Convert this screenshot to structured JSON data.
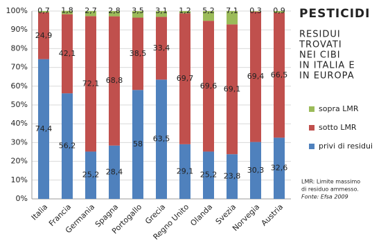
{
  "chart_data": {
    "type": "stacked_bar",
    "title": "PESTICIDI",
    "subtitle": [
      "RESIDUI",
      "TROVATI",
      "NEI CIBI",
      "IN ITALIA E",
      "IN EUROPA"
    ],
    "notes": [
      "LMR: Limite massimo",
      "di residuo ammesso.",
      "Fonte: Efsa 2009"
    ],
    "categories": [
      "Italia",
      "Francia",
      "Germania",
      "Spagna",
      "Portogallo",
      "Grecia",
      "Regno Unito",
      "Olanda",
      "Svezia",
      "Norvegia",
      "Austria"
    ],
    "series": [
      {
        "name": "privi di residui",
        "color": "#4f81bd",
        "values": [
          74.4,
          56.2,
          25.2,
          28.4,
          58,
          63.5,
          29.1,
          25.2,
          23.8,
          30.3,
          32.6
        ],
        "value_labels": [
          "74,4",
          "56,2",
          "25,2",
          "28,4",
          "58",
          "63,5",
          "29,1",
          "25,2",
          "23,8",
          "30,3",
          "32,6"
        ]
      },
      {
        "name": "sotto LMR",
        "color": "#c0504d",
        "values": [
          24.9,
          42.1,
          72.1,
          68.8,
          38.5,
          33.4,
          69.7,
          69.6,
          69.1,
          69.4,
          66.5
        ],
        "value_labels": [
          "24,9",
          "42,1",
          "72,1",
          "68,8",
          "38,5",
          "33,4",
          "69,7",
          "69,6",
          "69,1",
          "69,4",
          "66,5"
        ]
      },
      {
        "name": "sopra LMR",
        "color": "#9bbb59",
        "values": [
          0.7,
          1.8,
          2.7,
          2.8,
          3.5,
          3.1,
          1.2,
          5.2,
          7.1,
          0.3,
          0.9
        ],
        "value_labels": [
          "0,7",
          "1,8",
          "2,7",
          "2,8",
          "3,5",
          "3,1",
          "1,2",
          "5,2",
          "7,1",
          "0,3",
          "0,9"
        ]
      }
    ],
    "ylim": [
      0,
      100
    ],
    "yticks": [
      {
        "value": 0,
        "label": "0%"
      },
      {
        "value": 10,
        "label": "10%"
      },
      {
        "value": 20,
        "label": "20%"
      },
      {
        "value": 30,
        "label": "30%"
      },
      {
        "value": 40,
        "label": "40%"
      },
      {
        "value": 50,
        "label": "50%"
      },
      {
        "value": 60,
        "label": "60%"
      },
      {
        "value": 70,
        "label": "70%"
      },
      {
        "value": 80,
        "label": "80%"
      },
      {
        "value": 90,
        "label": "90%"
      },
      {
        "value": 100,
        "label": "100%"
      }
    ],
    "grid": true
  }
}
